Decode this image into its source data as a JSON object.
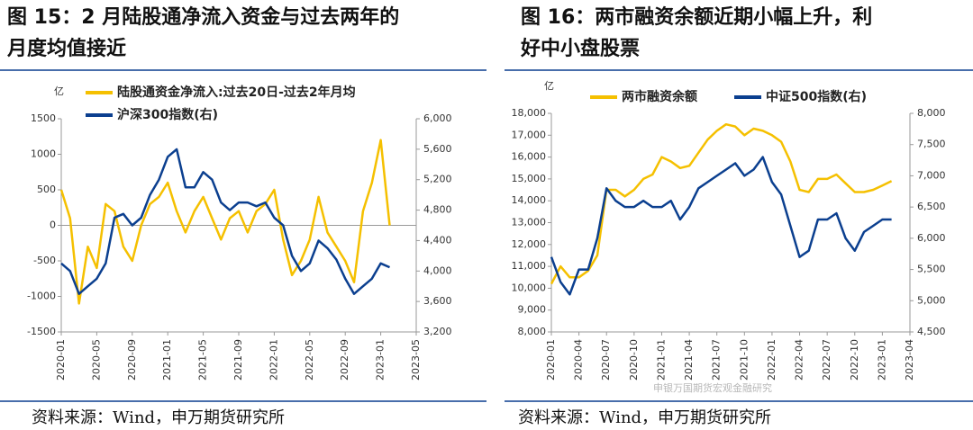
{
  "chart_data": [
    {
      "type": "line",
      "title": [
        "图 15：2 月陆股通净流入资金与过去两年的",
        "月度均值接近"
      ],
      "ylabel": "亿",
      "source": "资料来源：Wind，申万期货研究所",
      "x": [
        "2020-01",
        "2020-02",
        "2020-03",
        "2020-04",
        "2020-05",
        "2020-06",
        "2020-07",
        "2020-08",
        "2020-09",
        "2020-10",
        "2020-11",
        "2020-12",
        "2021-01",
        "2021-02",
        "2021-03",
        "2021-04",
        "2021-05",
        "2021-06",
        "2021-07",
        "2021-08",
        "2021-09",
        "2021-10",
        "2021-11",
        "2021-12",
        "2022-01",
        "2022-02",
        "2022-03",
        "2022-04",
        "2022-05",
        "2022-06",
        "2022-07",
        "2022-08",
        "2022-09",
        "2022-10",
        "2022-11",
        "2022-12",
        "2023-01",
        "2023-02"
      ],
      "xlim": [
        "2020-01",
        "2023-05"
      ],
      "xticks": [
        "2020-01",
        "2020-05",
        "2020-09",
        "2021-01",
        "2021-05",
        "2021-09",
        "2022-01",
        "2022-05",
        "2022-09",
        "2023-01",
        "2023-05"
      ],
      "ylim": [
        -1500,
        1500
      ],
      "yticks": [
        -1500,
        -1000,
        -500,
        0,
        500,
        1000,
        1500
      ],
      "y2lim": [
        3200,
        6000
      ],
      "y2ticks": [
        {
          "value": 3200,
          "label": "3,200"
        },
        {
          "value": 3600,
          "label": "3,600"
        },
        {
          "value": 4000,
          "label": "4,000"
        },
        {
          "value": 4400,
          "label": "4,400"
        },
        {
          "value": 4800,
          "label": "4,800"
        },
        {
          "value": 5200,
          "label": "5,200"
        },
        {
          "value": 5600,
          "label": "5,600"
        },
        {
          "value": 6000,
          "label": "6,000"
        }
      ],
      "series": [
        {
          "name": "陆股通资金净流入:过去20日-过去2年月均",
          "color": "#f5c000",
          "values": [
            500,
            100,
            -1100,
            -300,
            -600,
            300,
            200,
            -300,
            -500,
            0,
            300,
            400,
            600,
            200,
            -100,
            200,
            400,
            100,
            -200,
            100,
            200,
            -100,
            200,
            300,
            500,
            -200,
            -700,
            -500,
            -200,
            400,
            -100,
            -300,
            -500,
            -800,
            200,
            600,
            1200,
            0
          ]
        },
        {
          "name": "沪深300指数(右)",
          "color": "#0b3f8f",
          "axis": "y2",
          "values": [
            4100,
            4000,
            3700,
            3800,
            3900,
            4100,
            4700,
            4750,
            4600,
            4700,
            5000,
            5200,
            5500,
            5600,
            5100,
            5100,
            5300,
            5200,
            4900,
            4800,
            4900,
            4900,
            4850,
            4900,
            4700,
            4600,
            4200,
            4000,
            4100,
            4400,
            4300,
            4150,
            3900,
            3700,
            3800,
            3900,
            4100,
            4050
          ]
        }
      ]
    },
    {
      "type": "line",
      "title": [
        "图 16：两市融资余额近期小幅上升，利",
        "好中小盘股票"
      ],
      "ylabel": "亿",
      "source": "资料来源：Wind，申万期货研究所",
      "watermark": "申银万国期货宏观金融研究",
      "x": [
        "2020-01",
        "2020-02",
        "2020-03",
        "2020-04",
        "2020-05",
        "2020-06",
        "2020-07",
        "2020-08",
        "2020-09",
        "2020-10",
        "2020-11",
        "2020-12",
        "2021-01",
        "2021-02",
        "2021-03",
        "2021-04",
        "2021-05",
        "2021-06",
        "2021-07",
        "2021-08",
        "2021-09",
        "2021-10",
        "2021-11",
        "2021-12",
        "2022-01",
        "2022-02",
        "2022-03",
        "2022-04",
        "2022-05",
        "2022-06",
        "2022-07",
        "2022-08",
        "2022-09",
        "2022-10",
        "2022-11",
        "2022-12",
        "2023-01",
        "2023-02"
      ],
      "xlim": [
        "2020-01",
        "2023-04"
      ],
      "xticks": [
        "2020-01",
        "2020-04",
        "2020-07",
        "2020-10",
        "2021-01",
        "2021-04",
        "2021-07",
        "2021-10",
        "2022-01",
        "2022-04",
        "2022-07",
        "2022-10",
        "2023-01",
        "2023-04"
      ],
      "ylim": [
        8000,
        18000
      ],
      "yticks": [
        {
          "value": 8000,
          "label": "8,000"
        },
        {
          "value": 9000,
          "label": "9,000"
        },
        {
          "value": 10000,
          "label": "10,000"
        },
        {
          "value": 11000,
          "label": "11,000"
        },
        {
          "value": 12000,
          "label": "12,000"
        },
        {
          "value": 13000,
          "label": "13,000"
        },
        {
          "value": 14000,
          "label": "14,000"
        },
        {
          "value": 15000,
          "label": "15,000"
        },
        {
          "value": 16000,
          "label": "16,000"
        },
        {
          "value": 17000,
          "label": "17,000"
        },
        {
          "value": 18000,
          "label": "18,000"
        }
      ],
      "y2lim": [
        4500,
        8000
      ],
      "y2ticks": [
        {
          "value": 4500,
          "label": "4,500"
        },
        {
          "value": 5000,
          "label": "5,000"
        },
        {
          "value": 5500,
          "label": "5,500"
        },
        {
          "value": 6000,
          "label": "6,000"
        },
        {
          "value": 6500,
          "label": "6,500"
        },
        {
          "value": 7000,
          "label": "7,000"
        },
        {
          "value": 7500,
          "label": "7,500"
        },
        {
          "value": 8000,
          "label": "8,000"
        }
      ],
      "series": [
        {
          "name": "两市融资余额",
          "color": "#f5c000",
          "values": [
            10200,
            11000,
            10500,
            10500,
            10800,
            11500,
            14500,
            14500,
            14200,
            14500,
            15000,
            15200,
            16000,
            15800,
            15500,
            15600,
            16200,
            16800,
            17200,
            17500,
            17400,
            17000,
            17300,
            17200,
            17000,
            16700,
            15800,
            14500,
            14400,
            15000,
            15000,
            15200,
            14800,
            14400,
            14400,
            14500,
            14700,
            14900
          ]
        },
        {
          "name": "中证500指数(右)",
          "color": "#0b3f8f",
          "axis": "y2",
          "values": [
            5700,
            5300,
            5100,
            5500,
            5500,
            6000,
            6800,
            6600,
            6500,
            6500,
            6600,
            6500,
            6500,
            6600,
            6300,
            6500,
            6800,
            6900,
            7000,
            7100,
            7200,
            7000,
            7100,
            7300,
            6900,
            6700,
            6200,
            5700,
            5800,
            6300,
            6300,
            6400,
            6000,
            5800,
            6100,
            6200,
            6300,
            6300
          ]
        }
      ]
    }
  ]
}
